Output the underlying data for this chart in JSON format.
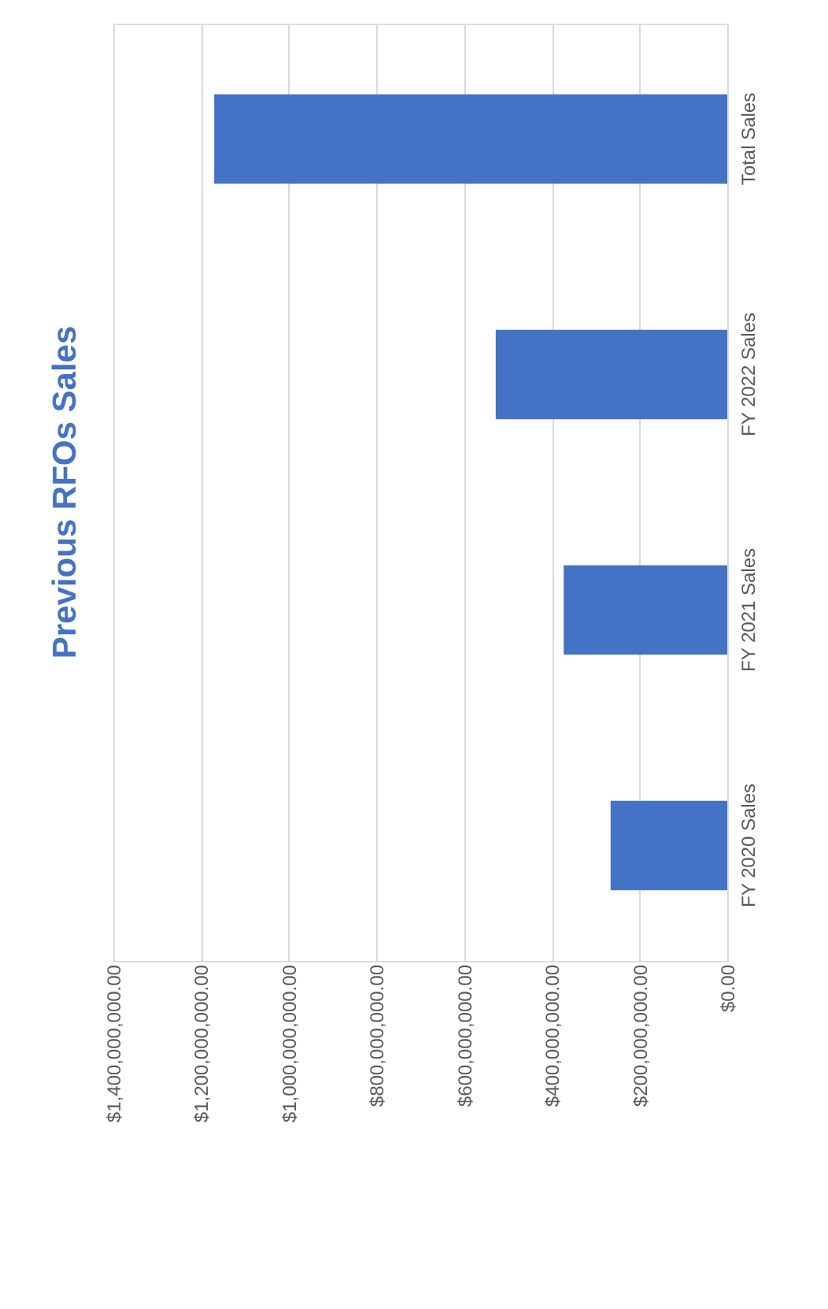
{
  "chart_data": {
    "type": "bar",
    "orientation": "horizontal",
    "title": "Previous RFOs Sales",
    "categories": [
      "Total Sales",
      "FY 2022 Sales",
      "FY 2021 Sales",
      "FY 2020 Sales"
    ],
    "values": [
      1170000000,
      528000000,
      373000000,
      266000000
    ],
    "color": "#4472c4",
    "xlim": [
      1400000000,
      0
    ],
    "xticks": [
      {
        "value": 1400000000,
        "label": "$1,400,000,000.00"
      },
      {
        "value": 1200000000,
        "label": "$1,200,000,000.00"
      },
      {
        "value": 1000000000,
        "label": "$1,000,000,000.00"
      },
      {
        "value": 800000000,
        "label": "$800,000,000.00"
      },
      {
        "value": 600000000,
        "label": "$600,000,000.00"
      },
      {
        "value": 400000000,
        "label": "$400,000,000.00"
      },
      {
        "value": 200000000,
        "label": "$200,000,000.00"
      },
      {
        "value": 0,
        "label": "$0.00"
      }
    ],
    "grid": "x"
  }
}
